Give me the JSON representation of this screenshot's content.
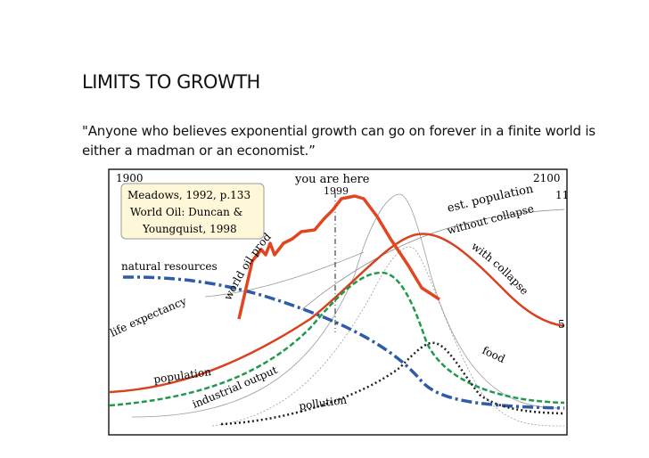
{
  "slide": {
    "title": "LIMITS TO GROWTH",
    "quote": "\"Anyone who believes exponential growth can go on forever in a finite world is either a madman or an economist.”"
  },
  "figure": {
    "year_start": "1900",
    "year_end": "2100",
    "you_are_here": "you are here",
    "year_now": "1999",
    "source_line1": "Meadows, 1992, p.133",
    "source_line2": "World Oil: Duncan &",
    "source_line3": "Youngquist, 1998",
    "est_population_line1": "est. population",
    "est_population_line2": "without collapse",
    "est_population_value": "11",
    "with_collapse": "with collapse",
    "collapse_value": "5",
    "natural_resources": "natural resources",
    "life_expectancy": "life expectancy",
    "world_oil_production": "world oil production",
    "population": "population",
    "industrial_output": "industrial output",
    "food": "food",
    "pollution": "pollution",
    "colors": {
      "oil": "#e2451f",
      "population": "#d8421e",
      "resources": "#2f5ca8",
      "industrial": "#1f9a4a",
      "pollution": "#222222",
      "source_box": "#fff8d8"
    }
  }
}
